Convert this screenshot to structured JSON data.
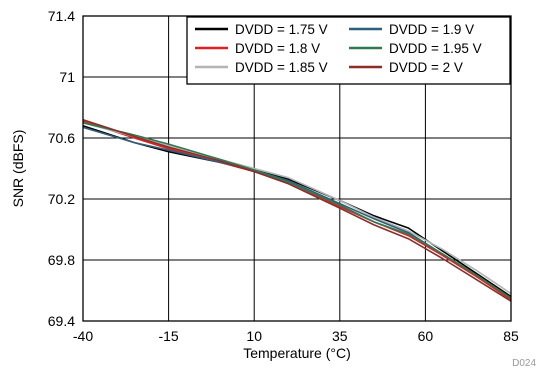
{
  "chart_data": {
    "type": "line",
    "xlabel": "Temperature (°C)",
    "ylabel": "SNR (dBFS)",
    "figure_code": "D024",
    "xlim": [
      -40,
      85
    ],
    "ylim": [
      69.4,
      71.4
    ],
    "xticks": [
      "-40",
      "-15",
      "10",
      "35",
      "60",
      "85"
    ],
    "yticks": [
      "69.4",
      "69.8",
      "70.2",
      "70.6",
      "71",
      "71.4"
    ],
    "grid": true,
    "legend_position": "top-right",
    "x": [
      -40,
      -25,
      -15,
      0,
      10,
      20,
      35,
      45,
      55,
      65,
      75,
      85
    ],
    "series": [
      {
        "name": "DVDD = 1.75 V",
        "color": "#000000",
        "values": [
          70.68,
          70.57,
          70.51,
          70.44,
          70.39,
          70.33,
          70.19,
          70.09,
          70.01,
          69.86,
          69.71,
          69.56
        ]
      },
      {
        "name": "DVDD = 1.8 V",
        "color": "#e02020",
        "values": [
          70.71,
          70.6,
          70.53,
          70.44,
          70.38,
          70.31,
          70.15,
          70.05,
          69.96,
          69.83,
          69.69,
          69.54
        ]
      },
      {
        "name": "DVDD = 1.85 V",
        "color": "#b4b4b4",
        "values": [
          70.7,
          70.61,
          70.55,
          70.46,
          70.4,
          70.34,
          70.19,
          70.08,
          69.99,
          69.87,
          69.73,
          69.58
        ]
      },
      {
        "name": "DVDD = 1.9 V",
        "color": "#2f5f7a",
        "values": [
          70.67,
          70.57,
          70.52,
          70.44,
          70.39,
          70.32,
          70.17,
          70.07,
          69.98,
          69.84,
          69.7,
          69.55
        ]
      },
      {
        "name": "DVDD = 1.95 V",
        "color": "#2e7a50",
        "values": [
          70.7,
          70.62,
          70.56,
          70.46,
          70.39,
          70.31,
          70.16,
          70.05,
          69.97,
          69.84,
          69.7,
          69.55
        ]
      },
      {
        "name": "DVDD = 2 V",
        "color": "#8b2e2a",
        "values": [
          70.72,
          70.61,
          70.54,
          70.45,
          70.38,
          70.3,
          70.14,
          70.03,
          69.94,
          69.81,
          69.67,
          69.53
        ]
      }
    ]
  }
}
